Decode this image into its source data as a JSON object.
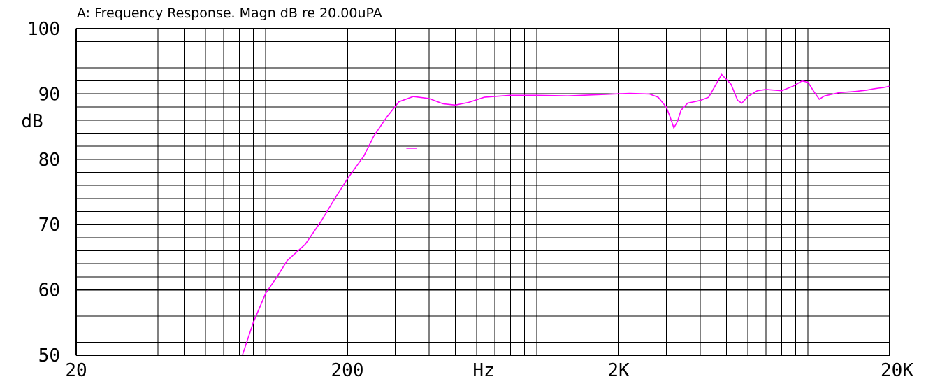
{
  "chart_data": {
    "type": "line",
    "title": "A: Frequency Response. Magn dB re 20.00uPA",
    "xlabel": "Hz",
    "ylabel": "dB",
    "x_scale": "log",
    "xlim": [
      20,
      20000
    ],
    "ylim": [
      50,
      100
    ],
    "x_ticks": [
      {
        "value": 20,
        "label": "20"
      },
      {
        "value": 200,
        "label": "200"
      },
      {
        "value": 2000,
        "label": "2K"
      },
      {
        "value": 20000,
        "label": "20K"
      }
    ],
    "y_ticks": [
      {
        "value": 100,
        "label": "100"
      },
      {
        "value": 90,
        "label": "90"
      },
      {
        "value": 80,
        "label": "80"
      },
      {
        "value": 70,
        "label": "70"
      },
      {
        "value": 60,
        "label": "60"
      },
      {
        "value": 50,
        "label": "50"
      }
    ],
    "y_minor_step": 2,
    "grid": true,
    "colors": {
      "series": "#ff00ff",
      "grid": "#000000"
    },
    "series": [
      {
        "x": [
          82,
          90,
          100,
          110,
          120,
          140,
          160,
          180,
          200,
          230,
          250,
          280,
          310,
          350,
          400,
          450,
          500,
          560,
          640,
          800,
          1000,
          1300,
          1700,
          2200,
          2600,
          2800,
          3000,
          3100,
          3200,
          3300,
          3400,
          3600,
          3800,
          4000,
          4300,
          4800,
          5200,
          5500,
          5700,
          6000,
          6500,
          7000,
          8000,
          8800,
          9500,
          10000,
          10500,
          11000,
          11500,
          13000,
          15000,
          16500,
          17500,
          18200,
          19000,
          20000
        ],
        "y": [
          50,
          55,
          59.5,
          62,
          64.5,
          67,
          70.5,
          74,
          77,
          80.5,
          83.5,
          86.5,
          88.8,
          89.6,
          89.3,
          88.5,
          88.3,
          88.7,
          89.5,
          89.8,
          89.8,
          89.7,
          89.9,
          90.1,
          90.0,
          89.5,
          88.0,
          86.5,
          84.8,
          85.8,
          87.5,
          88.6,
          88.8,
          89.0,
          89.5,
          93.0,
          91.5,
          89.0,
          88.6,
          89.6,
          90.5,
          90.7,
          90.5,
          91.2,
          92.0,
          91.8,
          90.4,
          89.2,
          89.7,
          90.2,
          90.4,
          90.6,
          90.8,
          90.9,
          91.0,
          91.2
        ]
      },
      {
        "x": [
          330,
          360
        ],
        "y": [
          81.7,
          81.7
        ]
      }
    ]
  }
}
